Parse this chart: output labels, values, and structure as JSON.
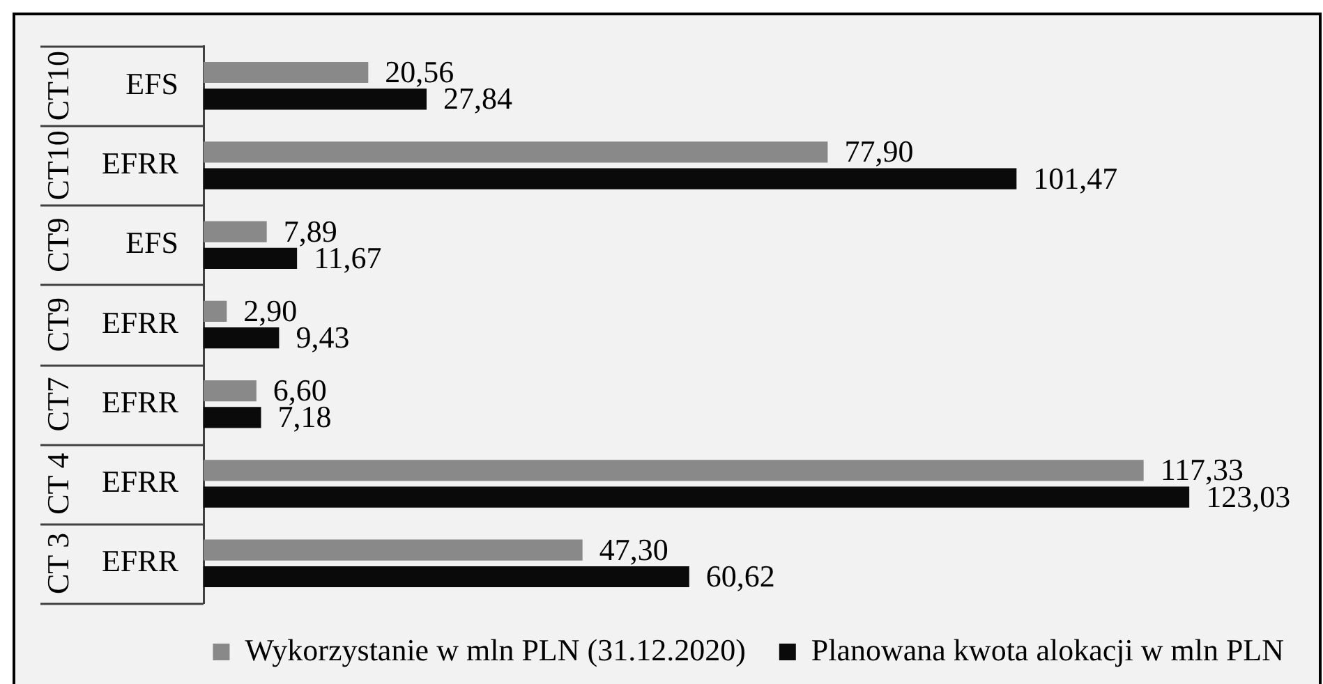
{
  "chart_data": {
    "type": "bar",
    "orientation": "horizontal",
    "categories": [
      "EFS",
      "EFRR",
      "EFS",
      "EFRR",
      "EFRR",
      "EFRR",
      "EFRR"
    ],
    "y2_categories": [
      "CT10",
      "CT10",
      "CT9",
      "CT9",
      "CT7",
      "CT 4",
      "CT 3"
    ],
    "series": [
      {
        "name": "Wykorzystanie w mln PLN (31.12.2020)",
        "color": "#898989",
        "values": [
          20.56,
          77.9,
          7.89,
          2.9,
          6.6,
          117.33,
          47.3
        ],
        "value_labels": [
          "20,56",
          "77,90",
          "7,89",
          "2,90",
          "6,60",
          "117,33",
          "47,30"
        ]
      },
      {
        "name": "Planowana kwota alokacji w mln PLN",
        "color": "#0a0a0a",
        "values": [
          27.84,
          101.47,
          11.67,
          9.43,
          7.18,
          123.03,
          60.62
        ],
        "value_labels": [
          "27,84",
          "101,47",
          "11,67",
          "9,43",
          "7,18",
          "123,03",
          "60,62"
        ]
      }
    ],
    "legend": "bottom",
    "grid": false,
    "tick_labels": "y"
  }
}
